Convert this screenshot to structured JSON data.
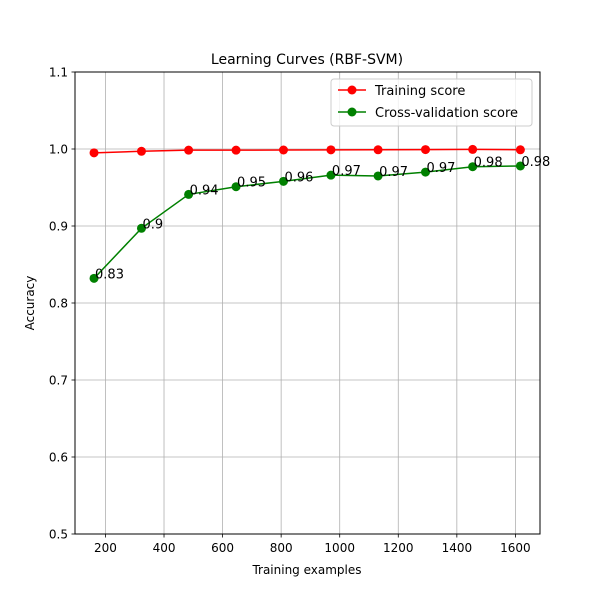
{
  "chart_data": {
    "type": "line",
    "title": "Learning Curves (RBF-SVM)",
    "xlabel": "Training examples",
    "ylabel": "Accuracy",
    "xlim": [
      96,
      1684
    ],
    "ylim": [
      0.5,
      1.1
    ],
    "xticks": [
      200,
      400,
      600,
      800,
      1000,
      1200,
      1400,
      1600
    ],
    "yticks": [
      0.5,
      0.6,
      0.7,
      0.8,
      0.9,
      1.0,
      1.1
    ],
    "xtick_labels": [
      "200",
      "400",
      "600",
      "800",
      "1000",
      "1200",
      "1400",
      "1600"
    ],
    "ytick_labels": [
      "0.5",
      "0.6",
      "0.7",
      "0.8",
      "0.9",
      "1.0",
      "1.1"
    ],
    "grid": true,
    "legend_position": "top-right",
    "x": [
      161,
      323,
      484,
      646,
      808,
      970,
      1131,
      1293,
      1454,
      1617
    ],
    "series": [
      {
        "name": "Training score",
        "color": "#ff0000",
        "values": [
          0.995,
          0.997,
          0.9985,
          0.9985,
          0.9987,
          0.9989,
          0.999,
          0.9992,
          0.9995,
          0.999
        ],
        "labels": []
      },
      {
        "name": "Cross-validation score",
        "color": "#008000",
        "values": [
          0.832,
          0.897,
          0.941,
          0.951,
          0.958,
          0.966,
          0.965,
          0.97,
          0.977,
          0.978
        ],
        "labels": [
          "0.83",
          "0.9",
          "0.94",
          "0.95",
          "0.96",
          "0.97",
          "0.97",
          "0.97",
          "0.98",
          "0.98"
        ]
      }
    ]
  }
}
